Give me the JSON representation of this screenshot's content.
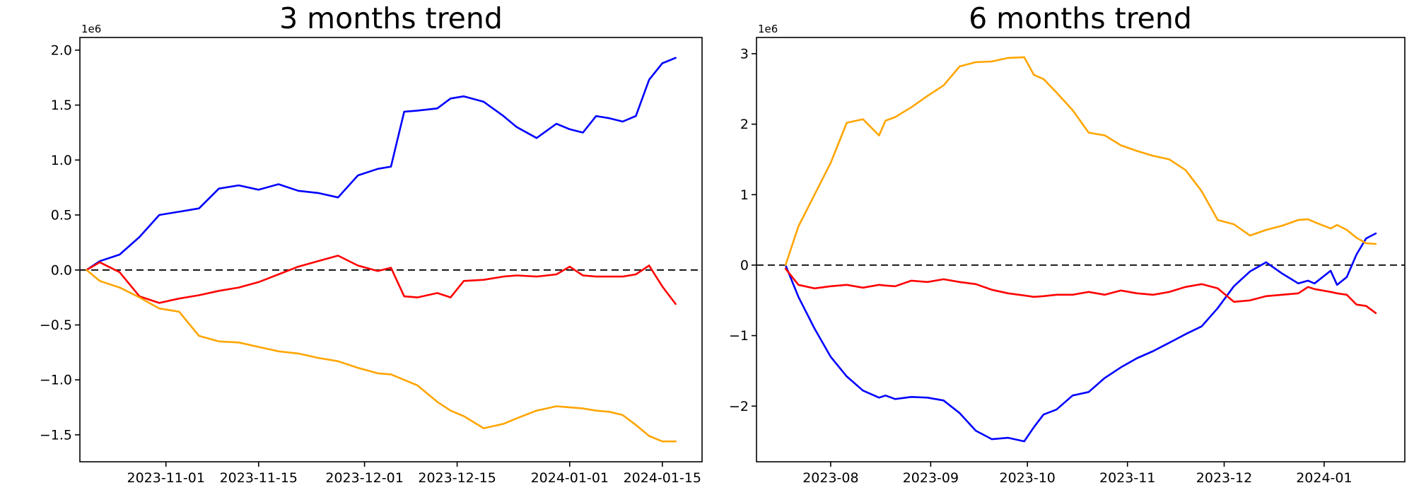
{
  "figure": {
    "background": "#ffffff",
    "axis_color": "#000000",
    "zero_line_color": "#000000"
  },
  "chart_data": [
    {
      "type": "line",
      "title": "3 months trend",
      "offset_label": "1e6",
      "x_type": "date",
      "grid": false,
      "legend": "none",
      "zero_line": true,
      "xlim": [
        "2023-10-19",
        "2024-01-21"
      ],
      "ylim": [
        -1745000,
        2115000
      ],
      "xticks": [
        "2023-11-01",
        "2023-11-15",
        "2023-12-01",
        "2023-12-15",
        "2024-01-01",
        "2024-01-15"
      ],
      "xtick_labels": [
        "2023-11-01",
        "2023-11-15",
        "2023-12-01",
        "2023-12-15",
        "2024-01-01",
        "2024-01-15"
      ],
      "yticks": [
        -1500000,
        -1000000,
        -500000,
        0,
        500000,
        1000000,
        1500000,
        2000000
      ],
      "ytick_labels": [
        "−1.5",
        "−1.0",
        "−0.5",
        "0.0",
        "0.5",
        "1.0",
        "1.5",
        "2.0"
      ],
      "series": [
        {
          "name": "blue",
          "color": "#0000ff",
          "dates": [
            "2023-10-20",
            "2023-10-22",
            "2023-10-25",
            "2023-10-28",
            "2023-10-31",
            "2023-11-03",
            "2023-11-06",
            "2023-11-09",
            "2023-11-12",
            "2023-11-15",
            "2023-11-18",
            "2023-11-21",
            "2023-11-24",
            "2023-11-27",
            "2023-11-30",
            "2023-12-03",
            "2023-12-05",
            "2023-12-07",
            "2023-12-09",
            "2023-12-12",
            "2023-12-14",
            "2023-12-16",
            "2023-12-19",
            "2023-12-22",
            "2023-12-24",
            "2023-12-27",
            "2023-12-30",
            "2024-01-01",
            "2024-01-03",
            "2024-01-05",
            "2024-01-07",
            "2024-01-09",
            "2024-01-11",
            "2024-01-13",
            "2024-01-15",
            "2024-01-17"
          ],
          "values": [
            0,
            80000,
            140000,
            300000,
            500000,
            530000,
            560000,
            740000,
            770000,
            730000,
            780000,
            720000,
            700000,
            660000,
            860000,
            920000,
            940000,
            1440000,
            1450000,
            1470000,
            1560000,
            1580000,
            1530000,
            1400000,
            1300000,
            1200000,
            1330000,
            1280000,
            1250000,
            1400000,
            1380000,
            1350000,
            1400000,
            1730000,
            1880000,
            1930000
          ]
        },
        {
          "name": "red",
          "color": "#ff0000",
          "dates": [
            "2023-10-20",
            "2023-10-22",
            "2023-10-25",
            "2023-10-28",
            "2023-10-31",
            "2023-11-03",
            "2023-11-06",
            "2023-11-09",
            "2023-11-12",
            "2023-11-15",
            "2023-11-18",
            "2023-11-21",
            "2023-11-24",
            "2023-11-27",
            "2023-11-30",
            "2023-12-03",
            "2023-12-05",
            "2023-12-07",
            "2023-12-09",
            "2023-12-12",
            "2023-12-14",
            "2023-12-16",
            "2023-12-19",
            "2023-12-22",
            "2023-12-24",
            "2023-12-27",
            "2023-12-30",
            "2024-01-01",
            "2024-01-03",
            "2024-01-05",
            "2024-01-07",
            "2024-01-09",
            "2024-01-11",
            "2024-01-13",
            "2024-01-15",
            "2024-01-17"
          ],
          "values": [
            0,
            70000,
            -20000,
            -240000,
            -300000,
            -260000,
            -230000,
            -190000,
            -160000,
            -110000,
            -40000,
            30000,
            80000,
            130000,
            40000,
            -10000,
            20000,
            -240000,
            -250000,
            -210000,
            -250000,
            -100000,
            -90000,
            -60000,
            -50000,
            -60000,
            -40000,
            30000,
            -50000,
            -60000,
            -60000,
            -60000,
            -40000,
            40000,
            -150000,
            -310000
          ]
        },
        {
          "name": "orange",
          "color": "#ffa500",
          "dates": [
            "2023-10-20",
            "2023-10-22",
            "2023-10-25",
            "2023-10-28",
            "2023-10-31",
            "2023-11-03",
            "2023-11-06",
            "2023-11-09",
            "2023-11-12",
            "2023-11-15",
            "2023-11-18",
            "2023-11-21",
            "2023-11-24",
            "2023-11-27",
            "2023-11-30",
            "2023-12-03",
            "2023-12-05",
            "2023-12-07",
            "2023-12-09",
            "2023-12-12",
            "2023-12-14",
            "2023-12-16",
            "2023-12-19",
            "2023-12-22",
            "2023-12-24",
            "2023-12-27",
            "2023-12-30",
            "2024-01-01",
            "2024-01-03",
            "2024-01-05",
            "2024-01-07",
            "2024-01-09",
            "2024-01-11",
            "2024-01-13",
            "2024-01-15",
            "2024-01-17"
          ],
          "values": [
            0,
            -100000,
            -160000,
            -250000,
            -350000,
            -380000,
            -600000,
            -650000,
            -660000,
            -700000,
            -740000,
            -760000,
            -800000,
            -830000,
            -890000,
            -940000,
            -950000,
            -1000000,
            -1050000,
            -1200000,
            -1280000,
            -1330000,
            -1440000,
            -1400000,
            -1350000,
            -1280000,
            -1240000,
            -1250000,
            -1260000,
            -1280000,
            -1290000,
            -1320000,
            -1410000,
            -1510000,
            -1560000,
            -1560000
          ]
        }
      ]
    },
    {
      "type": "line",
      "title": "6 months trend",
      "offset_label": "1e6",
      "x_type": "date",
      "grid": false,
      "legend": "none",
      "zero_line": true,
      "xlim": [
        "2023-07-09",
        "2024-01-26"
      ],
      "ylim": [
        -2790000,
        3230000
      ],
      "xticks": [
        "2023-08-01",
        "2023-09-01",
        "2023-10-01",
        "2023-11-01",
        "2023-12-01",
        "2024-01-01"
      ],
      "xtick_labels": [
        "2023-08",
        "2023-09",
        "2023-10",
        "2023-11",
        "2023-12",
        "2024-01"
      ],
      "yticks": [
        -2000000,
        -1000000,
        0,
        1000000,
        2000000,
        3000000
      ],
      "ytick_labels": [
        "−2",
        "−1",
        "0",
        "1",
        "2",
        "3"
      ],
      "series": [
        {
          "name": "blue",
          "color": "#0000ff",
          "dates": [
            "2023-07-18",
            "2023-07-22",
            "2023-07-27",
            "2023-08-01",
            "2023-08-06",
            "2023-08-11",
            "2023-08-16",
            "2023-08-18",
            "2023-08-21",
            "2023-08-26",
            "2023-08-31",
            "2023-09-05",
            "2023-09-10",
            "2023-09-15",
            "2023-09-20",
            "2023-09-25",
            "2023-09-30",
            "2023-10-03",
            "2023-10-06",
            "2023-10-10",
            "2023-10-15",
            "2023-10-20",
            "2023-10-25",
            "2023-10-30",
            "2023-11-04",
            "2023-11-09",
            "2023-11-14",
            "2023-11-19",
            "2023-11-24",
            "2023-11-29",
            "2023-12-04",
            "2023-12-09",
            "2023-12-14",
            "2023-12-19",
            "2023-12-24",
            "2023-12-27",
            "2023-12-29",
            "2024-01-03",
            "2024-01-05",
            "2024-01-08",
            "2024-01-11",
            "2024-01-14",
            "2024-01-17"
          ],
          "values": [
            0,
            -450000,
            -900000,
            -1300000,
            -1580000,
            -1780000,
            -1880000,
            -1850000,
            -1900000,
            -1870000,
            -1880000,
            -1920000,
            -2100000,
            -2350000,
            -2470000,
            -2450000,
            -2500000,
            -2300000,
            -2120000,
            -2050000,
            -1850000,
            -1800000,
            -1600000,
            -1450000,
            -1320000,
            -1220000,
            -1100000,
            -980000,
            -870000,
            -610000,
            -300000,
            -90000,
            40000,
            -120000,
            -260000,
            -220000,
            -260000,
            -80000,
            -280000,
            -170000,
            150000,
            380000,
            450000
          ]
        },
        {
          "name": "red",
          "color": "#ff0000",
          "dates": [
            "2023-07-18",
            "2023-07-22",
            "2023-07-27",
            "2023-08-01",
            "2023-08-06",
            "2023-08-11",
            "2023-08-16",
            "2023-08-18",
            "2023-08-21",
            "2023-08-26",
            "2023-08-31",
            "2023-09-05",
            "2023-09-10",
            "2023-09-15",
            "2023-09-20",
            "2023-09-25",
            "2023-09-30",
            "2023-10-03",
            "2023-10-06",
            "2023-10-10",
            "2023-10-15",
            "2023-10-20",
            "2023-10-25",
            "2023-10-30",
            "2023-11-04",
            "2023-11-09",
            "2023-11-14",
            "2023-11-19",
            "2023-11-24",
            "2023-11-29",
            "2023-12-04",
            "2023-12-09",
            "2023-12-14",
            "2023-12-19",
            "2023-12-24",
            "2023-12-27",
            "2023-12-29",
            "2024-01-03",
            "2024-01-05",
            "2024-01-08",
            "2024-01-11",
            "2024-01-14",
            "2024-01-17"
          ],
          "values": [
            -50000,
            -280000,
            -330000,
            -300000,
            -280000,
            -320000,
            -280000,
            -290000,
            -300000,
            -220000,
            -240000,
            -200000,
            -240000,
            -270000,
            -350000,
            -400000,
            -430000,
            -450000,
            -440000,
            -420000,
            -420000,
            -380000,
            -420000,
            -360000,
            -400000,
            -420000,
            -380000,
            -310000,
            -270000,
            -330000,
            -520000,
            -500000,
            -440000,
            -420000,
            -400000,
            -310000,
            -340000,
            -380000,
            -400000,
            -420000,
            -560000,
            -580000,
            -680000
          ]
        },
        {
          "name": "orange",
          "color": "#ffa500",
          "dates": [
            "2023-07-18",
            "2023-07-22",
            "2023-07-27",
            "2023-08-01",
            "2023-08-06",
            "2023-08-11",
            "2023-08-16",
            "2023-08-18",
            "2023-08-21",
            "2023-08-26",
            "2023-08-31",
            "2023-09-05",
            "2023-09-10",
            "2023-09-15",
            "2023-09-20",
            "2023-09-25",
            "2023-09-30",
            "2023-10-03",
            "2023-10-06",
            "2023-10-10",
            "2023-10-15",
            "2023-10-20",
            "2023-10-25",
            "2023-10-30",
            "2023-11-04",
            "2023-11-09",
            "2023-11-14",
            "2023-11-19",
            "2023-11-24",
            "2023-11-29",
            "2023-12-04",
            "2023-12-09",
            "2023-12-14",
            "2023-12-19",
            "2023-12-24",
            "2023-12-27",
            "2023-12-29",
            "2024-01-03",
            "2024-01-05",
            "2024-01-08",
            "2024-01-11",
            "2024-01-14",
            "2024-01-17"
          ],
          "values": [
            0,
            550000,
            1000000,
            1450000,
            2020000,
            2070000,
            1840000,
            2050000,
            2100000,
            2240000,
            2400000,
            2550000,
            2820000,
            2880000,
            2890000,
            2940000,
            2950000,
            2700000,
            2640000,
            2450000,
            2200000,
            1880000,
            1840000,
            1700000,
            1620000,
            1550000,
            1500000,
            1350000,
            1050000,
            640000,
            580000,
            420000,
            500000,
            560000,
            640000,
            650000,
            610000,
            520000,
            570000,
            500000,
            390000,
            310000,
            300000
          ]
        }
      ]
    }
  ]
}
